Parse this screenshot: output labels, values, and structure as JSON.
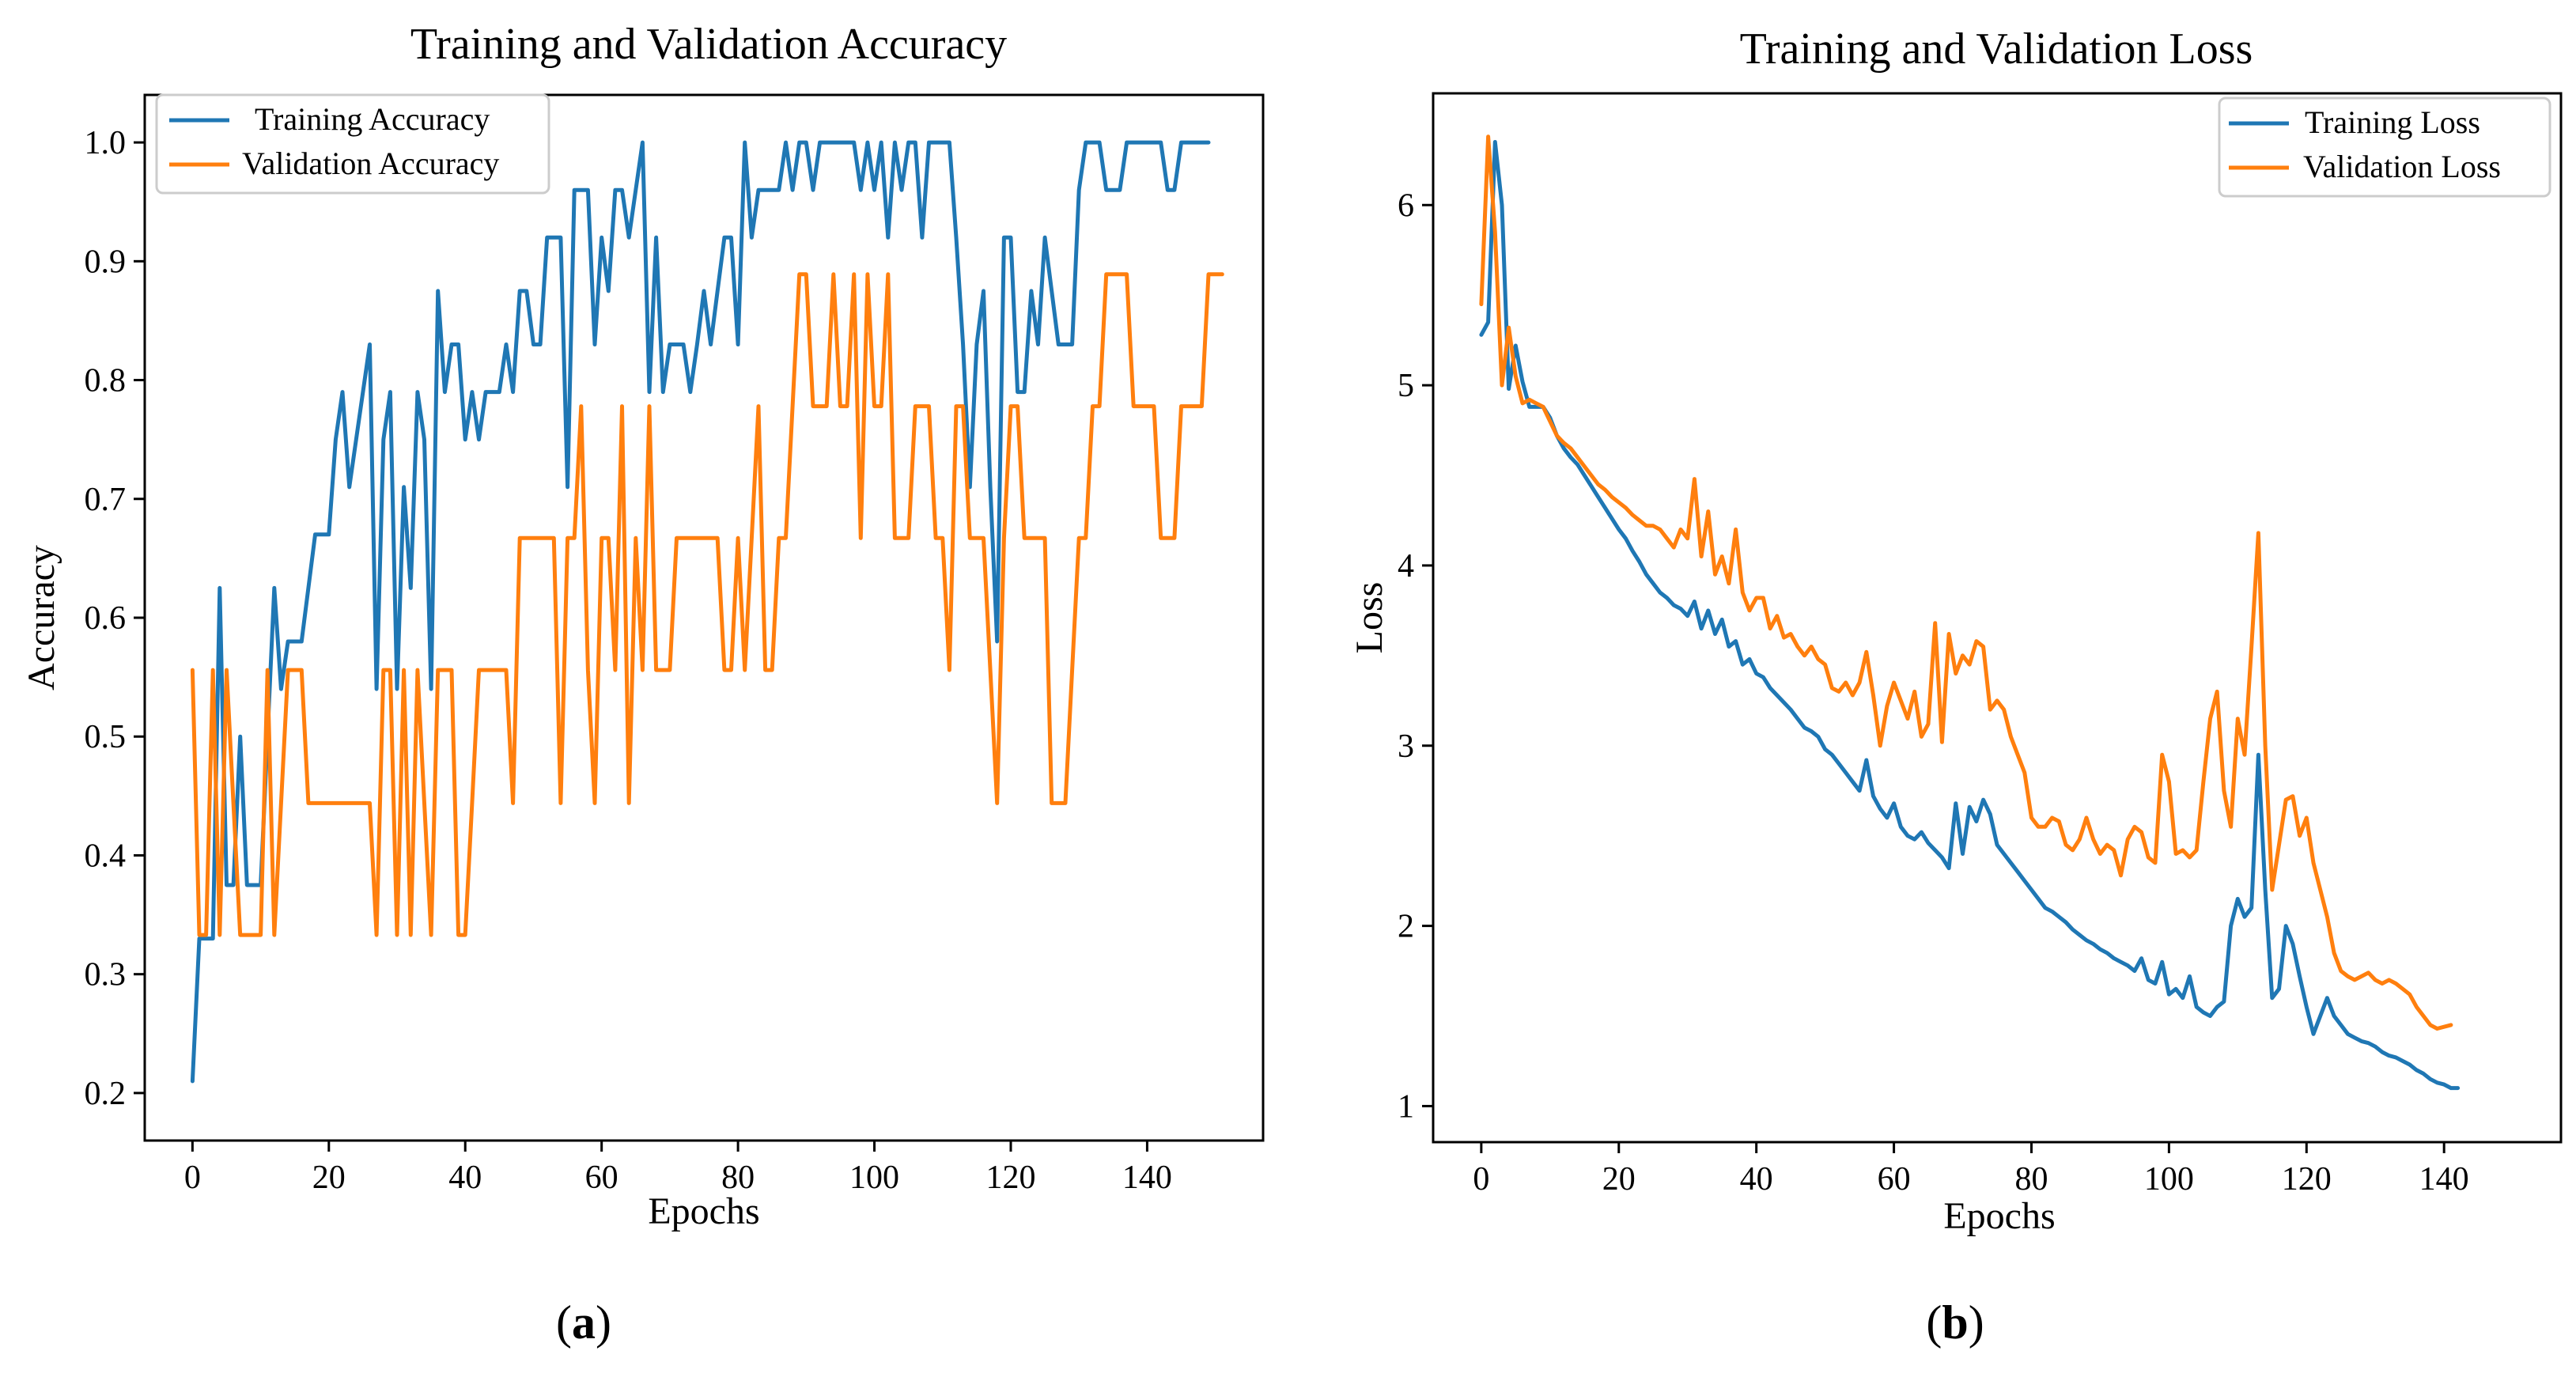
{
  "chart_data": [
    {
      "type": "line",
      "title": "Training and Validation Accuracy",
      "xlabel": "Epochs",
      "ylabel": "Accuracy",
      "xlim": [
        -7,
        157
      ],
      "ylim": [
        0.16,
        1.04
      ],
      "xticks": [
        0,
        20,
        40,
        60,
        80,
        100,
        120,
        140
      ],
      "yticks": [
        0.2,
        0.3,
        0.4,
        0.5,
        0.6,
        0.7,
        0.8,
        0.9,
        1.0
      ],
      "ytick_labels": [
        "0.2",
        "0.3",
        "0.4",
        "0.5",
        "0.6",
        "0.7",
        "0.8",
        "0.9",
        "1.0"
      ],
      "legend": "top-left",
      "grid": false,
      "series": [
        {
          "name": "Training Accuracy",
          "color": "#1f77b4",
          "values": [
            0.21,
            0.33,
            0.33,
            0.33,
            0.625,
            0.375,
            0.375,
            0.5,
            0.375,
            0.375,
            0.375,
            0.5,
            0.625,
            0.54,
            0.58,
            0.58,
            0.58,
            0.625,
            0.67,
            0.67,
            0.67,
            0.75,
            0.79,
            0.71,
            0.75,
            0.79,
            0.83,
            0.54,
            0.75,
            0.79,
            0.54,
            0.71,
            0.625,
            0.79,
            0.75,
            0.54,
            0.875,
            0.79,
            0.83,
            0.83,
            0.75,
            0.79,
            0.75,
            0.79,
            0.79,
            0.79,
            0.83,
            0.79,
            0.875,
            0.875,
            0.83,
            0.83,
            0.92,
            0.92,
            0.92,
            0.71,
            0.96,
            0.96,
            0.96,
            0.83,
            0.92,
            0.875,
            0.96,
            0.96,
            0.92,
            0.96,
            1.0,
            0.79,
            0.92,
            0.79,
            0.83,
            0.83,
            0.83,
            0.79,
            0.83,
            0.875,
            0.83,
            0.875,
            0.92,
            0.92,
            0.83,
            1.0,
            0.92,
            0.96,
            0.96,
            0.96,
            0.96,
            1.0,
            0.96,
            1.0,
            1.0,
            0.96,
            1.0,
            1.0,
            1.0,
            1.0,
            1.0,
            1.0,
            0.96,
            1.0,
            0.96,
            1.0,
            0.92,
            1.0,
            0.96,
            1.0,
            1.0,
            0.92,
            1.0,
            1.0,
            1.0,
            1.0,
            0.92,
            0.83,
            0.71,
            0.83,
            0.875,
            0.71,
            0.58,
            0.92,
            0.92,
            0.79,
            0.79,
            0.875,
            0.83,
            0.92,
            0.875,
            0.83,
            0.83,
            0.83,
            0.96,
            1.0,
            1.0,
            1.0,
            0.96,
            0.96,
            0.96,
            1.0,
            1.0,
            1.0,
            1.0,
            1.0,
            1.0,
            0.96,
            0.96,
            1.0,
            1.0,
            1.0,
            1.0,
            1.0
          ]
        },
        {
          "name": "Validation Accuracy",
          "color": "#ff7f0e",
          "values": [
            0.556,
            0.333,
            0.333,
            0.556,
            0.333,
            0.556,
            0.444,
            0.333,
            0.333,
            0.333,
            0.333,
            0.556,
            0.333,
            0.444,
            0.556,
            0.556,
            0.556,
            0.444,
            0.444,
            0.444,
            0.444,
            0.444,
            0.444,
            0.444,
            0.444,
            0.444,
            0.444,
            0.333,
            0.556,
            0.556,
            0.333,
            0.556,
            0.333,
            0.556,
            0.444,
            0.333,
            0.556,
            0.556,
            0.556,
            0.333,
            0.333,
            0.444,
            0.556,
            0.556,
            0.556,
            0.556,
            0.556,
            0.444,
            0.667,
            0.667,
            0.667,
            0.667,
            0.667,
            0.667,
            0.444,
            0.667,
            0.667,
            0.778,
            0.556,
            0.444,
            0.667,
            0.667,
            0.556,
            0.778,
            0.444,
            0.667,
            0.556,
            0.778,
            0.556,
            0.556,
            0.556,
            0.667,
            0.667,
            0.667,
            0.667,
            0.667,
            0.667,
            0.667,
            0.556,
            0.556,
            0.667,
            0.556,
            0.667,
            0.778,
            0.556,
            0.556,
            0.667,
            0.667,
            0.778,
            0.889,
            0.889,
            0.778,
            0.778,
            0.778,
            0.889,
            0.778,
            0.778,
            0.889,
            0.667,
            0.889,
            0.778,
            0.778,
            0.889,
            0.667,
            0.667,
            0.667,
            0.778,
            0.778,
            0.778,
            0.667,
            0.667,
            0.556,
            0.778,
            0.778,
            0.667,
            0.667,
            0.667,
            0.556,
            0.444,
            0.667,
            0.778,
            0.778,
            0.667,
            0.667,
            0.667,
            0.667,
            0.444,
            0.444,
            0.444,
            0.556,
            0.667,
            0.667,
            0.778,
            0.778,
            0.889,
            0.889,
            0.889,
            0.889,
            0.778,
            0.778,
            0.778,
            0.778,
            0.667,
            0.667,
            0.667,
            0.778,
            0.778,
            0.778,
            0.778,
            0.889,
            0.889,
            0.889
          ]
        }
      ]
    },
    {
      "type": "line",
      "title": "Training and Validation Loss",
      "xlabel": "Epochs",
      "ylabel": "Loss",
      "xlim": [
        -7,
        157
      ],
      "ylim": [
        0.8,
        6.62
      ],
      "xticks": [
        0,
        20,
        40,
        60,
        80,
        100,
        120,
        140
      ],
      "yticks": [
        1,
        2,
        3,
        4,
        5,
        6
      ],
      "ytick_labels": [
        "1",
        "2",
        "3",
        "4",
        "5",
        "6"
      ],
      "legend": "top-right",
      "grid": false,
      "series": [
        {
          "name": "Training Loss",
          "color": "#1f77b4",
          "values": [
            5.28,
            5.35,
            6.35,
            6.0,
            4.98,
            5.22,
            5.02,
            4.88,
            4.88,
            4.88,
            4.82,
            4.72,
            4.65,
            4.6,
            4.56,
            4.5,
            4.44,
            4.38,
            4.32,
            4.26,
            4.2,
            4.15,
            4.08,
            4.02,
            3.95,
            3.9,
            3.85,
            3.82,
            3.78,
            3.76,
            3.72,
            3.8,
            3.65,
            3.75,
            3.62,
            3.7,
            3.55,
            3.58,
            3.45,
            3.48,
            3.4,
            3.38,
            3.32,
            3.28,
            3.24,
            3.2,
            3.15,
            3.1,
            3.08,
            3.05,
            2.98,
            2.95,
            2.9,
            2.85,
            2.8,
            2.75,
            2.92,
            2.72,
            2.65,
            2.6,
            2.68,
            2.55,
            2.5,
            2.48,
            2.52,
            2.46,
            2.42,
            2.38,
            2.32,
            2.68,
            2.4,
            2.66,
            2.58,
            2.7,
            2.62,
            2.45,
            2.4,
            2.35,
            2.3,
            2.25,
            2.2,
            2.15,
            2.1,
            2.08,
            2.05,
            2.02,
            1.98,
            1.95,
            1.92,
            1.9,
            1.87,
            1.85,
            1.82,
            1.8,
            1.78,
            1.75,
            1.82,
            1.7,
            1.68,
            1.8,
            1.62,
            1.65,
            1.6,
            1.72,
            1.55,
            1.52,
            1.5,
            1.55,
            1.58,
            2.0,
            2.15,
            2.05,
            2.1,
            2.95,
            2.2,
            1.6,
            1.65,
            2.0,
            1.9,
            1.72,
            1.55,
            1.4,
            1.5,
            1.6,
            1.5,
            1.45,
            1.4,
            1.38,
            1.36,
            1.35,
            1.33,
            1.3,
            1.28,
            1.27,
            1.25,
            1.23,
            1.2,
            1.18,
            1.15,
            1.13,
            1.12,
            1.1,
            1.1
          ]
        },
        {
          "name": "Validation Loss",
          "color": "#ff7f0e",
          "values": [
            5.45,
            6.38,
            5.85,
            5.0,
            5.32,
            5.05,
            4.9,
            4.92,
            4.9,
            4.88,
            4.8,
            4.72,
            4.68,
            4.65,
            4.6,
            4.55,
            4.5,
            4.45,
            4.42,
            4.38,
            4.35,
            4.32,
            4.28,
            4.25,
            4.22,
            4.22,
            4.2,
            4.15,
            4.1,
            4.2,
            4.15,
            4.48,
            4.05,
            4.3,
            3.95,
            4.05,
            3.9,
            4.2,
            3.85,
            3.75,
            3.82,
            3.82,
            3.65,
            3.72,
            3.6,
            3.62,
            3.55,
            3.5,
            3.55,
            3.48,
            3.45,
            3.32,
            3.3,
            3.35,
            3.28,
            3.35,
            3.52,
            3.28,
            3.0,
            3.22,
            3.35,
            3.25,
            3.15,
            3.3,
            3.05,
            3.12,
            3.68,
            3.02,
            3.62,
            3.4,
            3.5,
            3.45,
            3.58,
            3.55,
            3.2,
            3.25,
            3.2,
            3.05,
            2.95,
            2.85,
            2.6,
            2.55,
            2.55,
            2.6,
            2.58,
            2.45,
            2.42,
            2.48,
            2.6,
            2.48,
            2.4,
            2.45,
            2.42,
            2.28,
            2.48,
            2.55,
            2.52,
            2.38,
            2.35,
            2.95,
            2.8,
            2.4,
            2.42,
            2.38,
            2.42,
            2.8,
            3.15,
            3.3,
            2.75,
            2.55,
            3.15,
            2.95,
            3.55,
            4.18,
            3.0,
            2.2,
            2.45,
            2.7,
            2.72,
            2.5,
            2.6,
            2.35,
            2.2,
            2.05,
            1.85,
            1.75,
            1.72,
            1.7,
            1.72,
            1.74,
            1.7,
            1.68,
            1.7,
            1.68,
            1.65,
            1.62,
            1.55,
            1.5,
            1.45,
            1.43,
            1.44,
            1.45
          ]
        }
      ]
    }
  ],
  "panels": [
    {
      "label": "(a)"
    },
    {
      "label": "(b)"
    }
  ]
}
